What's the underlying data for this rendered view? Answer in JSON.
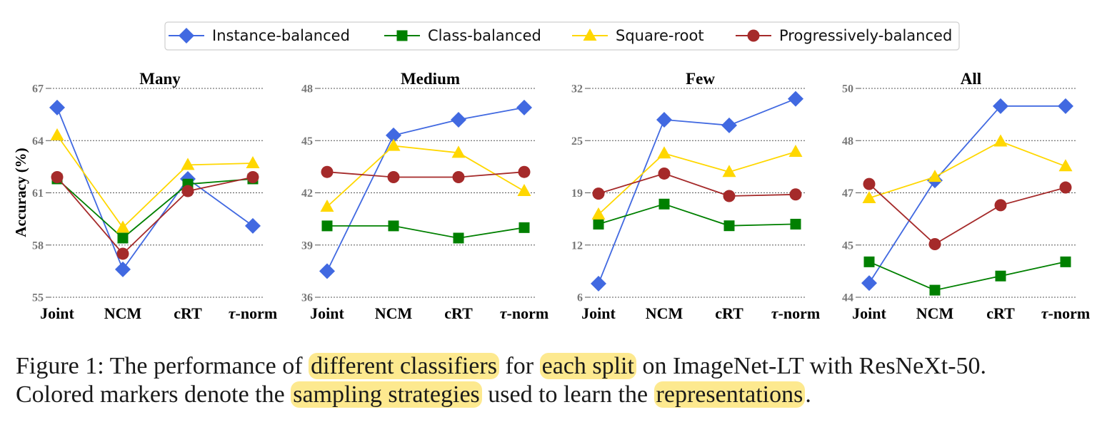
{
  "colors": {
    "Instance-balanced": "#4169e1",
    "Class-balanced": "#008000",
    "Square-root": "#ffd700",
    "Progressively-balanced": "#a52a2a",
    "highlight": "#fde98f"
  },
  "legend": {
    "placement": "top-center",
    "entries": [
      "Instance-balanced",
      "Class-balanced",
      "Square-root",
      "Progressively-balanced"
    ],
    "markers": [
      "diamond",
      "square",
      "triangle",
      "circle"
    ]
  },
  "ylabel": "Accuracy (%)",
  "chart_data": [
    {
      "type": "line",
      "title": "Many",
      "categories": [
        "Joint",
        "NCM",
        "cRT",
        "τ-norm"
      ],
      "yticks": [
        "55",
        "58",
        "61",
        "64",
        "67"
      ],
      "ylim": [
        55,
        67
      ],
      "grid": true,
      "series": [
        {
          "name": "Instance-balanced",
          "values": [
            65.9,
            56.6,
            61.8,
            59.1
          ]
        },
        {
          "name": "Class-balanced",
          "values": [
            61.8,
            58.4,
            61.5,
            61.8
          ]
        },
        {
          "name": "Square-root",
          "values": [
            64.3,
            59.0,
            62.6,
            62.7
          ]
        },
        {
          "name": "Progressively-balanced",
          "values": [
            61.9,
            57.5,
            61.1,
            61.9
          ]
        }
      ]
    },
    {
      "type": "line",
      "title": "Medium",
      "categories": [
        "Joint",
        "NCM",
        "cRT",
        "τ-norm"
      ],
      "yticks": [
        "36",
        "39",
        "42",
        "45",
        "48"
      ],
      "ylim": [
        36,
        48
      ],
      "grid": true,
      "series": [
        {
          "name": "Instance-balanced",
          "values": [
            37.5,
            45.3,
            46.2,
            46.9
          ]
        },
        {
          "name": "Class-balanced",
          "values": [
            40.1,
            40.1,
            39.4,
            40.0
          ]
        },
        {
          "name": "Square-root",
          "values": [
            41.2,
            44.7,
            44.3,
            42.1
          ]
        },
        {
          "name": "Progressively-balanced",
          "values": [
            43.2,
            42.9,
            42.9,
            43.2
          ]
        }
      ]
    },
    {
      "type": "line",
      "title": "Few",
      "categories": [
        "Joint",
        "NCM",
        "cRT",
        "τ-norm"
      ],
      "yticks": [
        "6",
        "12",
        "19",
        "25",
        "32"
      ],
      "ylim": [
        6,
        32
      ],
      "grid": true,
      "series": [
        {
          "name": "Instance-balanced",
          "values": [
            7.7,
            28.1,
            27.4,
            30.7
          ]
        },
        {
          "name": "Class-balanced",
          "values": [
            15.1,
            17.6,
            14.9,
            15.1
          ]
        },
        {
          "name": "Square-root",
          "values": [
            16.3,
            23.9,
            21.6,
            24.1
          ]
        },
        {
          "name": "Progressively-balanced",
          "values": [
            18.9,
            21.4,
            18.6,
            18.8
          ]
        }
      ]
    },
    {
      "type": "line",
      "title": "All",
      "categories": [
        "Joint",
        "NCM",
        "cRT",
        "τ-norm"
      ],
      "yticks": [
        "44",
        "45",
        "47",
        "48",
        "50"
      ],
      "ylim": [
        43.9,
        49.8
      ],
      "grid": true,
      "series": [
        {
          "name": "Instance-balanced",
          "values": [
            44.3,
            47.2,
            49.3,
            49.3
          ]
        },
        {
          "name": "Class-balanced",
          "values": [
            44.9,
            44.1,
            44.5,
            44.9
          ]
        },
        {
          "name": "Square-root",
          "values": [
            46.7,
            47.3,
            48.3,
            47.6
          ]
        },
        {
          "name": "Progressively-balanced",
          "values": [
            47.1,
            45.4,
            46.5,
            47.0
          ]
        }
      ]
    }
  ],
  "caption": {
    "line1": [
      {
        "text": "Figure 1: The performance of ",
        "hl": false
      },
      {
        "text": "different classifiers",
        "hl": true
      },
      {
        "text": " for ",
        "hl": false
      },
      {
        "text": "each split",
        "hl": true
      },
      {
        "text": " on ImageNet-LT with ResNeXt-50.",
        "hl": false
      }
    ],
    "line2": [
      {
        "text": "Colored markers denote the ",
        "hl": false
      },
      {
        "text": "sampling strategies",
        "hl": true
      },
      {
        "text": " used to learn the ",
        "hl": false
      },
      {
        "text": "representations",
        "hl": true
      },
      {
        "text": ".",
        "hl": false
      }
    ]
  }
}
